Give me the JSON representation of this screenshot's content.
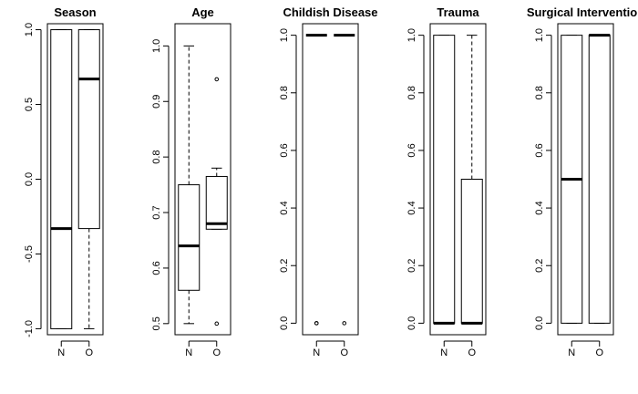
{
  "chart_data": [
    {
      "type": "boxplot",
      "title": "Season",
      "categories": [
        "N",
        "O"
      ],
      "yticks": [
        "-1.0",
        "-0.5",
        "0.0",
        "0.5",
        "1.0"
      ],
      "ytick_values": [
        -1.0,
        -0.5,
        0.0,
        0.5,
        1.0
      ],
      "ylim": [
        -1.04,
        1.04
      ],
      "boxes": [
        {
          "name": "N",
          "whisker_low": -1.0,
          "q1": -1.0,
          "median": -0.33,
          "q3": 1.0,
          "whisker_high": 1.0,
          "outliers": []
        },
        {
          "name": "O",
          "whisker_low": -1.0,
          "q1": -0.33,
          "median": 0.67,
          "q3": 1.0,
          "whisker_high": 1.0,
          "outliers": []
        }
      ]
    },
    {
      "type": "boxplot",
      "title": "Age",
      "categories": [
        "N",
        "O"
      ],
      "yticks": [
        "0.5",
        "0.6",
        "0.7",
        "0.8",
        "0.9",
        "1.0"
      ],
      "ytick_values": [
        0.5,
        0.6,
        0.7,
        0.8,
        0.9,
        1.0
      ],
      "ylim": [
        0.48,
        1.04
      ],
      "boxes": [
        {
          "name": "N",
          "whisker_low": 0.5,
          "q1": 0.56,
          "median": 0.64,
          "q3": 0.75,
          "whisker_high": 1.0,
          "outliers": []
        },
        {
          "name": "O",
          "whisker_low": 0.67,
          "q1": 0.67,
          "median": 0.68,
          "q3": 0.765,
          "whisker_high": 0.78,
          "outliers": [
            0.94,
            0.5
          ]
        }
      ]
    },
    {
      "type": "boxplot",
      "title": "Childish Disease",
      "categories": [
        "N",
        "O"
      ],
      "yticks": [
        "0.0",
        "0.2",
        "0.4",
        "0.6",
        "0.8",
        "1.0"
      ],
      "ytick_values": [
        0.0,
        0.2,
        0.4,
        0.6,
        0.8,
        1.0
      ],
      "ylim": [
        -0.04,
        1.04
      ],
      "boxes": [
        {
          "name": "N",
          "whisker_low": 1.0,
          "q1": 1.0,
          "median": 1.0,
          "q3": 1.0,
          "whisker_high": 1.0,
          "outliers": [
            0.0,
            0.0
          ]
        },
        {
          "name": "O",
          "whisker_low": 1.0,
          "q1": 1.0,
          "median": 1.0,
          "q3": 1.0,
          "whisker_high": 1.0,
          "outliers": [
            0.0
          ]
        }
      ]
    },
    {
      "type": "boxplot",
      "title": "Trauma",
      "categories": [
        "N",
        "O"
      ],
      "yticks": [
        "0.0",
        "0.2",
        "0.4",
        "0.6",
        "0.8",
        "1.0"
      ],
      "ytick_values": [
        0.0,
        0.2,
        0.4,
        0.6,
        0.8,
        1.0
      ],
      "ylim": [
        -0.04,
        1.04
      ],
      "boxes": [
        {
          "name": "N",
          "whisker_low": 0.0,
          "q1": 0.0,
          "median": 0.0,
          "q3": 1.0,
          "whisker_high": 1.0,
          "outliers": []
        },
        {
          "name": "O",
          "whisker_low": 0.0,
          "q1": 0.0,
          "median": 0.0,
          "q3": 0.5,
          "whisker_high": 1.0,
          "outliers": []
        }
      ]
    },
    {
      "type": "boxplot",
      "title": "Surgical Intervention",
      "categories": [
        "N",
        "O"
      ],
      "yticks": [
        "0.0",
        "0.2",
        "0.4",
        "0.6",
        "0.8",
        "1.0"
      ],
      "ytick_values": [
        0.0,
        0.2,
        0.4,
        0.6,
        0.8,
        1.0
      ],
      "ylim": [
        -0.04,
        1.04
      ],
      "boxes": [
        {
          "name": "N",
          "whisker_low": 0.0,
          "q1": 0.0,
          "median": 0.5,
          "q3": 1.0,
          "whisker_high": 1.0,
          "outliers": []
        },
        {
          "name": "O",
          "whisker_low": 0.0,
          "q1": 0.0,
          "median": 1.0,
          "q3": 1.0,
          "whisker_high": 1.0,
          "outliers": []
        }
      ]
    }
  ]
}
